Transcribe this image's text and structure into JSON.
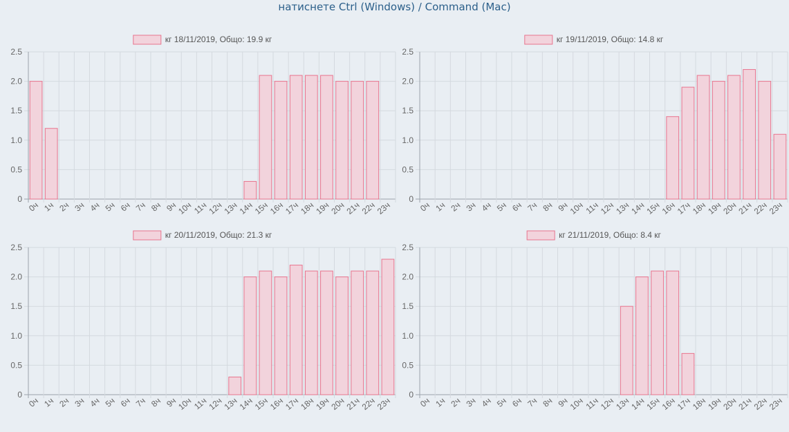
{
  "header": {
    "hint": "натиснете Ctrl (Windows) / Command (Mac)"
  },
  "colors": {
    "bar_fill": "#f2d3dc",
    "bar_stroke": "#e8748e",
    "grid": "#d4d9df",
    "axis": "#9aa3ab"
  },
  "chart_data": [
    {
      "type": "bar",
      "legend": "кг 18/11/2019, Общо: 19.9 кг",
      "categories": [
        "0ч",
        "1ч",
        "2ч",
        "3ч",
        "4ч",
        "5ч",
        "6ч",
        "7ч",
        "8ч",
        "9ч",
        "10ч",
        "11ч",
        "12ч",
        "13ч",
        "14ч",
        "15ч",
        "16ч",
        "17ч",
        "18ч",
        "19ч",
        "20ч",
        "21ч",
        "22ч",
        "23ч"
      ],
      "values": [
        2.0,
        1.2,
        0,
        0,
        0,
        0,
        0,
        0,
        0,
        0,
        0,
        0,
        0,
        0,
        0.3,
        2.1,
        2.0,
        2.1,
        2.1,
        2.1,
        2.0,
        2.0,
        2.0,
        0
      ],
      "ylim": [
        0,
        2.5
      ],
      "yticks": [
        "0",
        "0.5",
        "1.0",
        "1.5",
        "2.0",
        "2.5"
      ],
      "grid": true,
      "legend_position": "top"
    },
    {
      "type": "bar",
      "legend": "кг 19/11/2019, Общо: 14.8 кг",
      "categories": [
        "0ч",
        "1ч",
        "2ч",
        "3ч",
        "4ч",
        "5ч",
        "6ч",
        "7ч",
        "8ч",
        "9ч",
        "10ч",
        "11ч",
        "12ч",
        "13ч",
        "14ч",
        "15ч",
        "16ч",
        "17ч",
        "18ч",
        "19ч",
        "20ч",
        "21ч",
        "22ч",
        "23ч"
      ],
      "values": [
        0,
        0,
        0,
        0,
        0,
        0,
        0,
        0,
        0,
        0,
        0,
        0,
        0,
        0,
        0,
        0,
        1.4,
        1.9,
        2.1,
        2.0,
        2.1,
        2.2,
        2.0,
        1.1
      ],
      "ylim": [
        0,
        2.5
      ],
      "yticks": [
        "0",
        "0.5",
        "1.0",
        "1.5",
        "2.0",
        "2.5"
      ],
      "grid": true,
      "legend_position": "top"
    },
    {
      "type": "bar",
      "legend": "кг 20/11/2019, Общо: 21.3 кг",
      "categories": [
        "0ч",
        "1ч",
        "2ч",
        "3ч",
        "4ч",
        "5ч",
        "6ч",
        "7ч",
        "8ч",
        "9ч",
        "10ч",
        "11ч",
        "12ч",
        "13ч",
        "14ч",
        "15ч",
        "16ч",
        "17ч",
        "18ч",
        "19ч",
        "20ч",
        "21ч",
        "22ч",
        "23ч"
      ],
      "values": [
        0,
        0,
        0,
        0,
        0,
        0,
        0,
        0,
        0,
        0,
        0,
        0,
        0,
        0.3,
        2.0,
        2.1,
        2.0,
        2.2,
        2.1,
        2.1,
        2.0,
        2.1,
        2.1,
        2.3
      ],
      "ylim": [
        0,
        2.5
      ],
      "yticks": [
        "0",
        "0.5",
        "1.0",
        "1.5",
        "2.0",
        "2.5"
      ],
      "grid": true,
      "legend_position": "top"
    },
    {
      "type": "bar",
      "legend": "кг 21/11/2019, Общо: 8.4 кг",
      "categories": [
        "0ч",
        "1ч",
        "2ч",
        "3ч",
        "4ч",
        "5ч",
        "6ч",
        "7ч",
        "8ч",
        "9ч",
        "10ч",
        "11ч",
        "12ч",
        "13ч",
        "14ч",
        "15ч",
        "16ч",
        "17ч",
        "18ч",
        "19ч",
        "20ч",
        "21ч",
        "22ч",
        "23ч"
      ],
      "values": [
        0,
        0,
        0,
        0,
        0,
        0,
        0,
        0,
        0,
        0,
        0,
        0,
        0,
        1.5,
        2.0,
        2.1,
        2.1,
        0.7,
        0,
        0,
        0,
        0,
        0,
        0
      ],
      "ylim": [
        0,
        2.5
      ],
      "yticks": [
        "0",
        "0.5",
        "1.0",
        "1.5",
        "2.0",
        "2.5"
      ],
      "grid": true,
      "legend_position": "top"
    }
  ]
}
